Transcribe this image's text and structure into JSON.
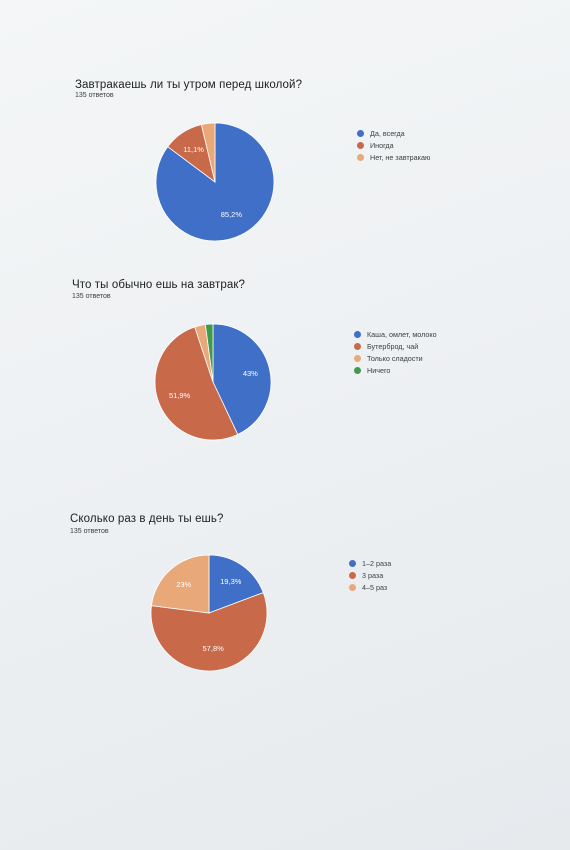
{
  "chart_data": [
    {
      "type": "pie",
      "title": "Завтракаешь ли ты утром перед школой?",
      "subtitle": "135 ответов",
      "categories": [
        "Да, всегда",
        "Иногда",
        "Нет, не завтракаю"
      ],
      "values": [
        85.2,
        11.1,
        3.7
      ],
      "data_labels": [
        "85,2%",
        "11,1%",
        ""
      ],
      "colors": [
        "#3f6fc6",
        "#c8694a",
        "#e8a877"
      ],
      "start_angle": 90,
      "legend_position": "right"
    },
    {
      "type": "pie",
      "title": "Что ты обычно ешь на завтрак?",
      "subtitle": "135 ответов",
      "categories": [
        "Каша, омлет, молоко",
        "Бутерброд, чай",
        "Только сладости",
        "Ничего"
      ],
      "values": [
        43.0,
        51.9,
        3.0,
        2.1
      ],
      "data_labels": [
        "43%",
        "51,9%",
        "",
        ""
      ],
      "colors": [
        "#3f6fc6",
        "#c8694a",
        "#e8a877",
        "#3f9a4f"
      ],
      "start_angle": 90,
      "legend_position": "right"
    },
    {
      "type": "pie",
      "title": "Сколько раз в день ты ешь?",
      "subtitle": "135 ответов",
      "categories": [
        "1–2 раза",
        "3 раза",
        "4–5 раз"
      ],
      "values": [
        19.3,
        57.8,
        23.0
      ],
      "data_labels": [
        "19,3%",
        "57,8%",
        "23%"
      ],
      "colors": [
        "#3f6fc6",
        "#c8694a",
        "#e8a877"
      ],
      "start_angle": 90,
      "legend_position": "right"
    }
  ]
}
